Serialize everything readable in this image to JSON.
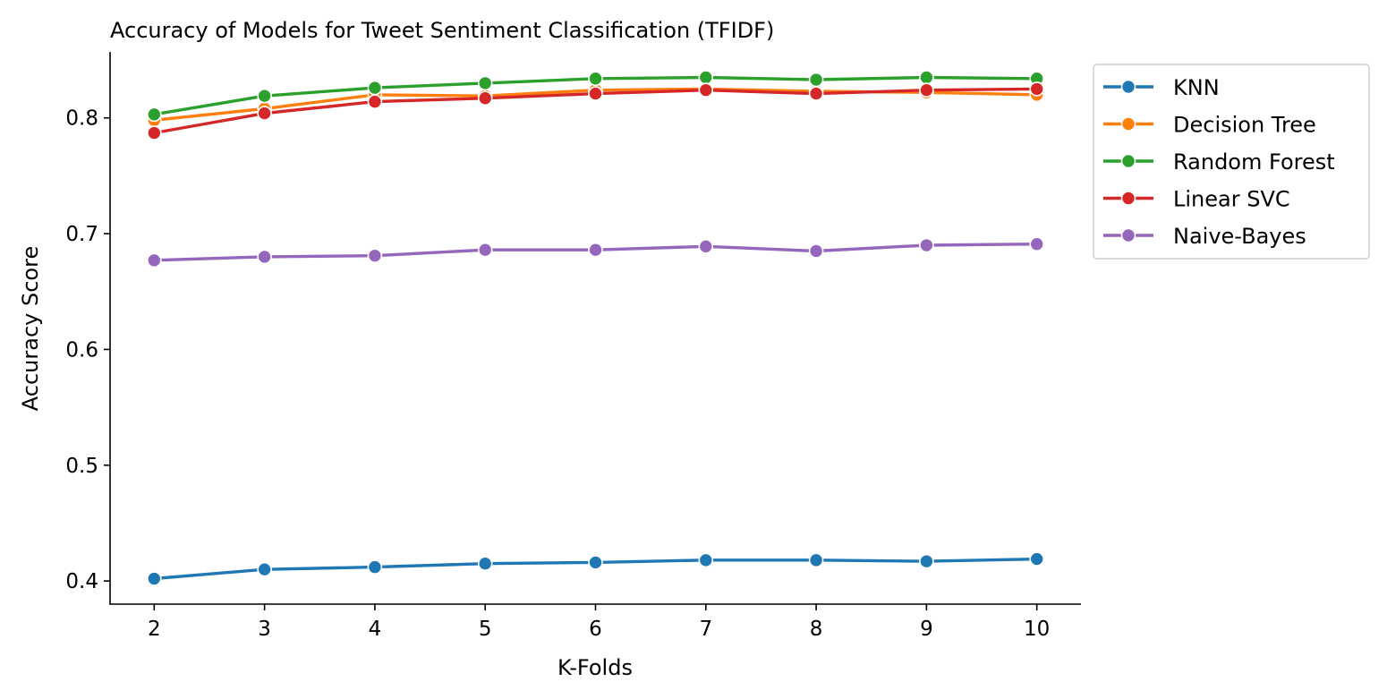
{
  "chart_data": {
    "type": "line",
    "title": "Accuracy of Models for Tweet Sentiment Classification (TFIDF)",
    "xlabel": "K-Folds",
    "ylabel": "Accuracy Score",
    "x": [
      2,
      3,
      4,
      5,
      6,
      7,
      8,
      9,
      10
    ],
    "xlim": [
      1.6,
      10.4
    ],
    "ylim": [
      0.38,
      0.857
    ],
    "xticks": [
      "2",
      "3",
      "4",
      "5",
      "6",
      "7",
      "8",
      "9",
      "10"
    ],
    "yticks": [
      {
        "value": 0.4,
        "label": "0.4"
      },
      {
        "value": 0.5,
        "label": "0.5"
      },
      {
        "value": 0.6,
        "label": "0.6"
      },
      {
        "value": 0.7,
        "label": "0.7"
      },
      {
        "value": 0.8,
        "label": "0.8"
      }
    ],
    "grid": false,
    "legend_position": "outside-top-right",
    "series": [
      {
        "name": "KNN",
        "color": "#1f77b4",
        "values": [
          0.402,
          0.41,
          0.412,
          0.415,
          0.416,
          0.418,
          0.418,
          0.417,
          0.419
        ]
      },
      {
        "name": "Decision Tree",
        "color": "#ff7f0e",
        "values": [
          0.798,
          0.808,
          0.82,
          0.819,
          0.824,
          0.825,
          0.823,
          0.822,
          0.82
        ]
      },
      {
        "name": "Random Forest",
        "color": "#2ca02c",
        "values": [
          0.803,
          0.819,
          0.826,
          0.83,
          0.834,
          0.835,
          0.833,
          0.835,
          0.834
        ]
      },
      {
        "name": "Linear SVC",
        "color": "#d62728",
        "values": [
          0.787,
          0.804,
          0.814,
          0.817,
          0.821,
          0.824,
          0.821,
          0.824,
          0.825
        ]
      },
      {
        "name": "Naive-Bayes",
        "color": "#9467bd",
        "values": [
          0.677,
          0.68,
          0.681,
          0.686,
          0.686,
          0.689,
          0.685,
          0.69,
          0.691
        ]
      }
    ]
  }
}
